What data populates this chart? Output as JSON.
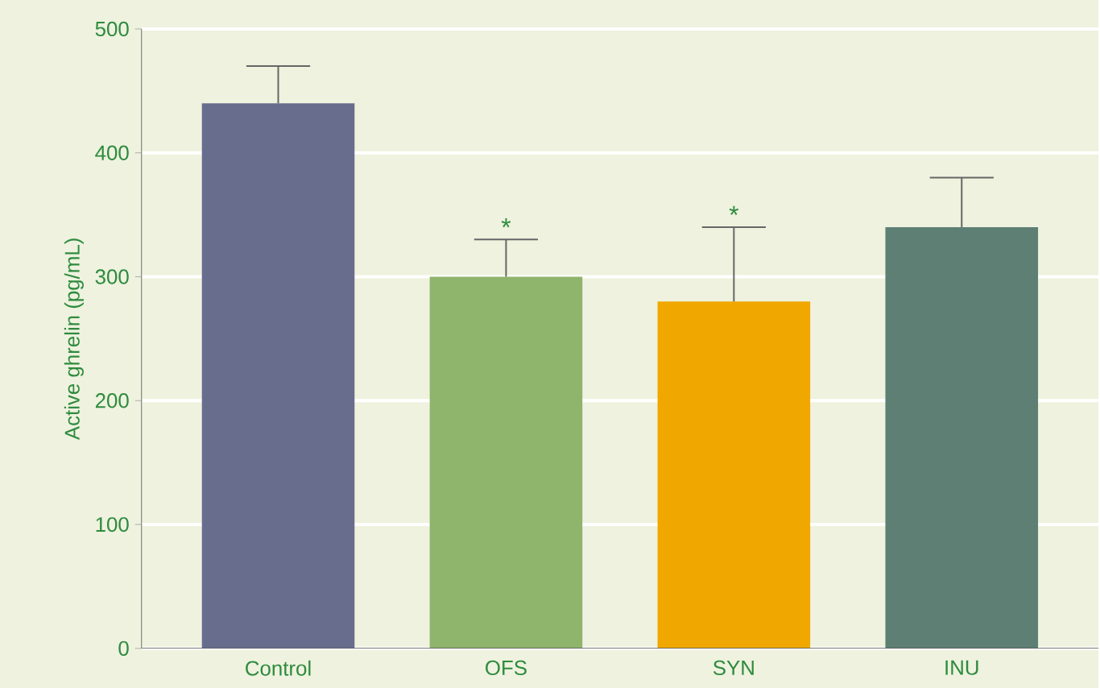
{
  "chart_data": {
    "type": "bar",
    "ylabel": "Active ghrelin (pg/mL)",
    "categories": [
      "Control",
      "OFS",
      "SYN",
      "INU"
    ],
    "values": [
      440,
      300,
      280,
      340
    ],
    "colors": [
      "#686d8e",
      "#8fb46c",
      "#f0a800",
      "#5d7f74"
    ],
    "errors": [
      [
        440,
        470
      ],
      [
        300,
        330
      ],
      [
        280,
        340
      ],
      [
        340,
        380
      ]
    ],
    "ylim": [
      0,
      500
    ],
    "yticks": [
      0,
      100,
      200,
      300,
      400,
      500
    ],
    "grid": "y",
    "annotations": [
      {
        "text": "*",
        "x": "OFS",
        "y": 330
      },
      {
        "text": "*",
        "x": "SYN",
        "y": 340
      }
    ]
  }
}
